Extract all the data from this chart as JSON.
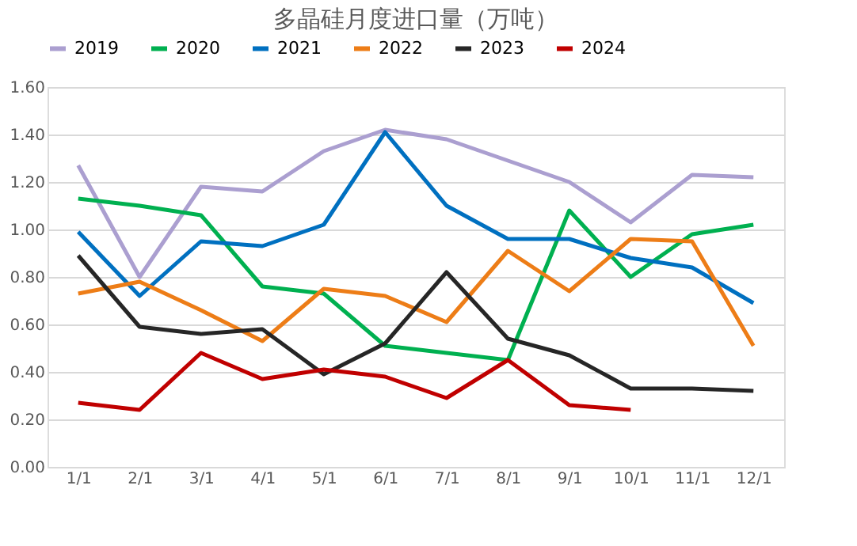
{
  "chart_data": {
    "type": "line",
    "title": "多晶硅月度进口量（万吨）",
    "categories": [
      "1/1",
      "2/1",
      "3/1",
      "4/1",
      "5/1",
      "6/1",
      "7/1",
      "8/1",
      "9/1",
      "10/1",
      "11/1",
      "12/1"
    ],
    "series": [
      {
        "name": "2019",
        "color": "#ab9fd0",
        "values": [
          1.27,
          0.8,
          1.18,
          1.16,
          1.33,
          1.42,
          1.38,
          1.29,
          1.2,
          1.03,
          1.23,
          1.22
        ]
      },
      {
        "name": "2020",
        "color": "#00b050",
        "values": [
          1.13,
          1.1,
          1.06,
          0.76,
          0.73,
          0.51,
          0.48,
          0.45,
          1.08,
          0.8,
          0.98,
          1.02
        ]
      },
      {
        "name": "2021",
        "color": "#0070c0",
        "values": [
          0.99,
          0.72,
          0.95,
          0.93,
          1.02,
          1.41,
          1.1,
          0.96,
          0.96,
          0.88,
          0.84,
          0.69
        ]
      },
      {
        "name": "2022",
        "color": "#ed7d17",
        "values": [
          0.73,
          0.78,
          0.66,
          0.53,
          0.75,
          0.72,
          0.61,
          0.91,
          0.74,
          0.96,
          0.95,
          0.51
        ]
      },
      {
        "name": "2023",
        "color": "#262626",
        "values": [
          0.89,
          0.59,
          0.56,
          0.58,
          0.39,
          0.52,
          0.82,
          0.54,
          0.47,
          0.33,
          0.33,
          0.32
        ]
      },
      {
        "name": "2024",
        "color": "#c00000",
        "values": [
          0.27,
          0.24,
          0.48,
          0.37,
          0.41,
          0.38,
          0.29,
          0.45,
          0.26,
          0.24,
          null,
          null
        ]
      }
    ],
    "ylim": [
      0,
      1.6
    ],
    "yticks": [
      {
        "value": 0,
        "label": "0.00"
      },
      {
        "value": 0.2,
        "label": "0.20"
      },
      {
        "value": 0.4,
        "label": "0.40"
      },
      {
        "value": 0.6,
        "label": "0.60"
      },
      {
        "value": 0.8,
        "label": "0.80"
      },
      {
        "value": 1.0,
        "label": "1.00"
      },
      {
        "value": 1.2,
        "label": "1.20"
      },
      {
        "value": 1.4,
        "label": "1.40"
      },
      {
        "value": 1.6,
        "label": "1.60"
      }
    ],
    "grid": "y",
    "legend": "top",
    "marker": "none",
    "line_style": "solid"
  }
}
